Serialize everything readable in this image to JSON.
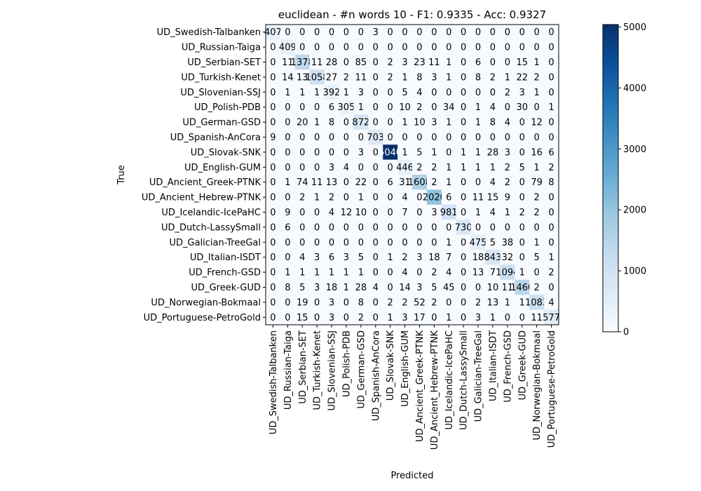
{
  "chart_data": {
    "type": "heatmap",
    "title": "euclidean - #n words 10 - F1: 0.9335 - Acc: 0.9327",
    "xlabel": "Predicted",
    "ylabel": "True",
    "labels": [
      "UD_Swedish-Talbanken",
      "UD_Russian-Taiga",
      "UD_Serbian-SET",
      "UD_Turkish-Kenet",
      "UD_Slovenian-SSJ",
      "UD_Polish-PDB",
      "UD_German-GSD",
      "UD_Spanish-AnCora",
      "UD_Slovak-SNK",
      "UD_English-GUM",
      "UD_Ancient_Greek-PTNK",
      "UD_Ancient_Hebrew-PTNK",
      "UD_Icelandic-IcePaHC",
      "UD_Dutch-LassySmall",
      "UD_Galician-TreeGal",
      "UD_Italian-ISDT",
      "UD_French-GSD",
      "UD_Greek-GUD",
      "UD_Norwegian-Bokmaal",
      "UD_Portuguese-PetroGold"
    ],
    "matrix": [
      [
        407,
        0,
        0,
        0,
        0,
        0,
        0,
        3,
        0,
        0,
        0,
        0,
        0,
        0,
        0,
        0,
        0,
        0,
        0,
        0
      ],
      [
        0,
        409,
        0,
        0,
        0,
        0,
        0,
        0,
        0,
        0,
        0,
        0,
        0,
        0,
        0,
        0,
        0,
        0,
        0,
        0
      ],
      [
        0,
        11,
        1378,
        11,
        28,
        0,
        85,
        0,
        2,
        3,
        23,
        11,
        1,
        0,
        6,
        0,
        0,
        15,
        1,
        0
      ],
      [
        0,
        14,
        13,
        1058,
        27,
        2,
        11,
        0,
        2,
        1,
        8,
        3,
        1,
        0,
        8,
        2,
        1,
        22,
        2,
        0
      ],
      [
        0,
        1,
        1,
        1,
        392,
        1,
        3,
        0,
        0,
        5,
        4,
        0,
        0,
        0,
        0,
        0,
        2,
        3,
        1,
        0
      ],
      [
        0,
        0,
        0,
        0,
        6,
        305,
        1,
        0,
        0,
        10,
        2,
        0,
        34,
        0,
        1,
        4,
        0,
        30,
        0,
        1
      ],
      [
        0,
        0,
        20,
        1,
        8,
        0,
        872,
        0,
        0,
        1,
        10,
        3,
        1,
        0,
        1,
        8,
        4,
        0,
        12,
        0
      ],
      [
        9,
        0,
        0,
        0,
        0,
        0,
        0,
        703,
        0,
        0,
        0,
        0,
        0,
        0,
        0,
        0,
        0,
        0,
        0,
        0
      ],
      [
        0,
        0,
        0,
        0,
        0,
        0,
        3,
        0,
        5040,
        1,
        5,
        1,
        0,
        1,
        1,
        28,
        3,
        0,
        16,
        6
      ],
      [
        0,
        0,
        0,
        0,
        3,
        4,
        0,
        0,
        0,
        446,
        2,
        2,
        1,
        1,
        1,
        1,
        2,
        5,
        1,
        2
      ],
      [
        0,
        1,
        74,
        11,
        13,
        0,
        22,
        0,
        6,
        31,
        1608,
        2,
        1,
        0,
        0,
        4,
        2,
        0,
        79,
        8
      ],
      [
        0,
        0,
        2,
        1,
        2,
        0,
        1,
        0,
        0,
        4,
        0,
        2020,
        6,
        0,
        11,
        15,
        9,
        0,
        2,
        0
      ],
      [
        0,
        9,
        0,
        0,
        4,
        12,
        10,
        0,
        0,
        7,
        0,
        3,
        981,
        0,
        1,
        4,
        1,
        2,
        2,
        0
      ],
      [
        0,
        6,
        0,
        0,
        0,
        0,
        0,
        0,
        0,
        0,
        0,
        0,
        0,
        730,
        0,
        0,
        0,
        0,
        0,
        0
      ],
      [
        0,
        0,
        0,
        0,
        0,
        0,
        0,
        0,
        0,
        0,
        0,
        0,
        1,
        0,
        475,
        5,
        38,
        0,
        1,
        0
      ],
      [
        0,
        0,
        4,
        3,
        6,
        3,
        5,
        0,
        1,
        2,
        3,
        18,
        7,
        0,
        18,
        843,
        32,
        0,
        5,
        1
      ],
      [
        0,
        1,
        1,
        1,
        1,
        1,
        1,
        0,
        0,
        4,
        0,
        2,
        4,
        0,
        13,
        7,
        1094,
        1,
        0,
        2
      ],
      [
        0,
        8,
        5,
        3,
        18,
        1,
        28,
        4,
        0,
        14,
        3,
        5,
        45,
        0,
        0,
        10,
        11,
        1460,
        2,
        0
      ],
      [
        0,
        0,
        19,
        0,
        3,
        0,
        8,
        0,
        2,
        2,
        52,
        2,
        0,
        0,
        2,
        13,
        1,
        1,
        1083,
        4
      ],
      [
        0,
        0,
        15,
        0,
        3,
        0,
        2,
        0,
        1,
        3,
        17,
        0,
        1,
        0,
        3,
        1,
        0,
        0,
        11,
        577
      ]
    ],
    "colorbar": {
      "min": 0,
      "max": 5040,
      "ticks": [
        "0",
        "1000",
        "2000",
        "3000",
        "4000",
        "5000"
      ],
      "colormap": "Blues",
      "low_color": "#f7fbff",
      "high_color": "#08306b"
    },
    "grid": false
  }
}
